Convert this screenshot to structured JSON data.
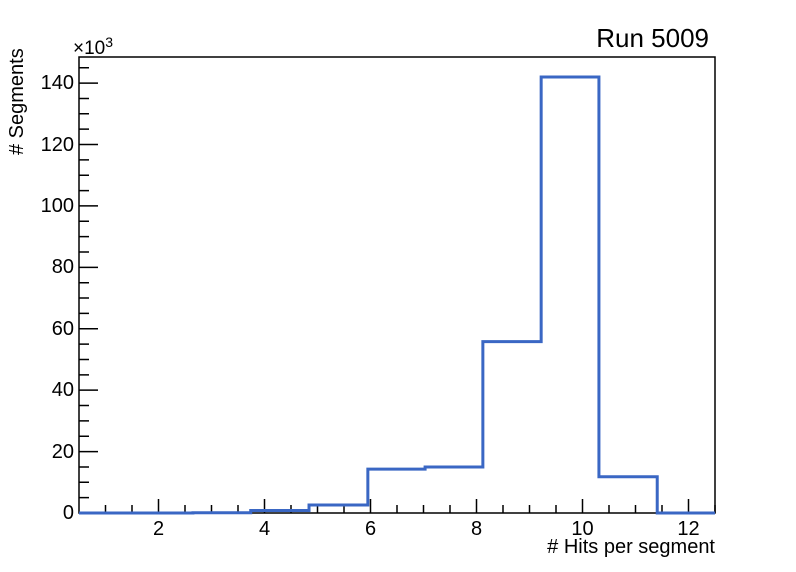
{
  "chart_data": {
    "type": "histogram-step",
    "title": "Run 5009",
    "x_axis": {
      "label": "# Hits per segment",
      "range": [
        0.5,
        12.5
      ],
      "major_ticks": [
        2,
        4,
        6,
        8,
        10,
        12
      ],
      "major_tick_labels": [
        "2",
        "4",
        "6",
        "8",
        "10",
        "12"
      ],
      "minor_tick_step": 0.5
    },
    "y_axis": {
      "label": "# Segments",
      "range": [
        0,
        148.5
      ],
      "major_ticks": [
        0,
        20,
        40,
        60,
        80,
        100,
        120,
        140
      ],
      "major_tick_labels": [
        "0",
        "20",
        "40",
        "60",
        "80",
        "100",
        "120",
        "140"
      ],
      "minor_tick_step": 5,
      "scale_label_base": "×10",
      "scale_label_exponent": "3",
      "values_in_units_of": 1000
    },
    "series": [
      {
        "name": "hits-per-segment-histogram",
        "bin_edges": [
          0.5,
          1.55,
          2.65,
          3.74,
          4.84,
          5.95,
          7.03,
          8.12,
          9.22,
          10.31,
          11.41,
          12.5
        ],
        "counts_thousands": [
          0,
          0,
          0.1,
          0.8,
          2.6,
          14.3,
          15.0,
          55.8,
          142.0,
          11.8,
          0
        ]
      }
    ],
    "grid": false,
    "legend": false,
    "colors": {
      "line": "#3a67c4",
      "axis": "#000000",
      "background": "#ffffff"
    }
  }
}
